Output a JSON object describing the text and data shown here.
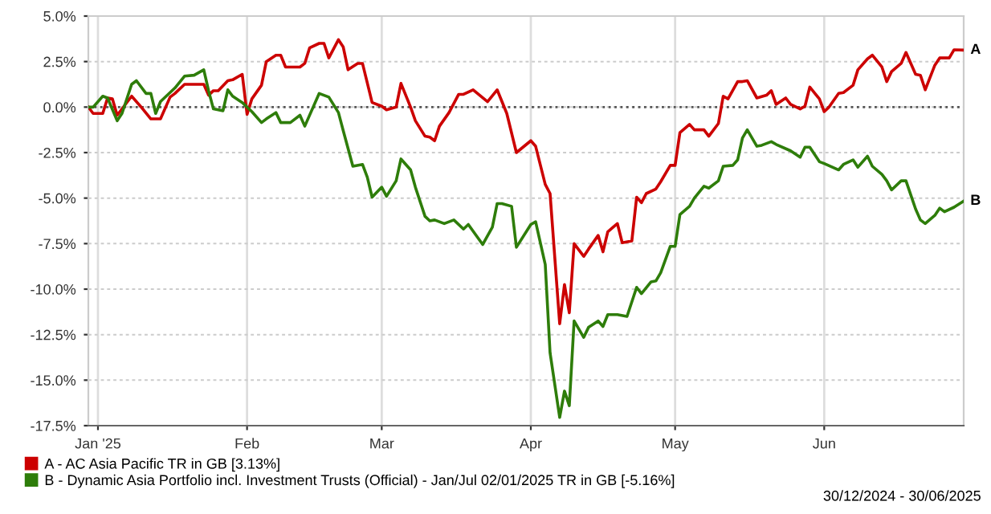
{
  "chart_data": {
    "type": "line",
    "xlim": [
      "2024-12-30",
      "2025-06-30"
    ],
    "xticks": [
      {
        "value": "2025-01-01",
        "label": "Jan '25"
      },
      {
        "value": "2025-02-01",
        "label": "Feb"
      },
      {
        "value": "2025-03-01",
        "label": "Mar"
      },
      {
        "value": "2025-04-01",
        "label": "Apr"
      },
      {
        "value": "2025-05-01",
        "label": "May"
      },
      {
        "value": "2025-06-01",
        "label": "Jun"
      }
    ],
    "ylim": [
      -17.5,
      5
    ],
    "yticks": [
      {
        "value": 5,
        "label": "5.0%"
      },
      {
        "value": 2.5,
        "label": "2.5%"
      },
      {
        "value": 0,
        "label": "0.0%"
      },
      {
        "value": -2.5,
        "label": "-2.5%"
      },
      {
        "value": -5,
        "label": "-5.0%"
      },
      {
        "value": -7.5,
        "label": "-7.5%"
      },
      {
        "value": -10,
        "label": "-10.0%"
      },
      {
        "value": -12.5,
        "label": "-12.5%"
      },
      {
        "value": -15,
        "label": "-15.0%"
      },
      {
        "value": -17.5,
        "label": "-17.5%"
      }
    ],
    "grid": true,
    "legend": "bottom",
    "ref_lines": [
      {
        "axis": "y",
        "value": 0,
        "color": "#555555",
        "line_style": "dotted"
      }
    ],
    "series": [
      {
        "name": "A - AC Asia Pacific TR in GB [3.13%]",
        "color": "#cc0000",
        "x": [
          "2024-12-30",
          "2024-12-31",
          "2025-01-02",
          "2025-01-03",
          "2025-01-04",
          "2025-01-05",
          "2025-01-08",
          "2025-01-10",
          "2025-01-12",
          "2025-01-14",
          "2025-01-16",
          "2025-01-17",
          "2025-01-19",
          "2025-01-23",
          "2025-01-24",
          "2025-01-25",
          "2025-01-26",
          "2025-01-28",
          "2025-01-29",
          "2025-01-31",
          "2025-02-01",
          "2025-02-02",
          "2025-02-04",
          "2025-02-05",
          "2025-02-07",
          "2025-02-08",
          "2025-02-09",
          "2025-02-12",
          "2025-02-13",
          "2025-02-14",
          "2025-02-16",
          "2025-02-17",
          "2025-02-18",
          "2025-02-20",
          "2025-02-21",
          "2025-02-22",
          "2025-02-24",
          "2025-02-25",
          "2025-02-27",
          "2025-03-01",
          "2025-03-02",
          "2025-03-04",
          "2025-03-05",
          "2025-03-07",
          "2025-03-08",
          "2025-03-10",
          "2025-03-11",
          "2025-03-12",
          "2025-03-13",
          "2025-03-15",
          "2025-03-17",
          "2025-03-18",
          "2025-03-20",
          "2025-03-23",
          "2025-03-25",
          "2025-03-27",
          "2025-03-29",
          "2025-04-01",
          "2025-04-02",
          "2025-04-04",
          "2025-04-05",
          "2025-04-07",
          "2025-04-08",
          "2025-04-09",
          "2025-04-10",
          "2025-04-12",
          "2025-04-13",
          "2025-04-15",
          "2025-04-16",
          "2025-04-17",
          "2025-04-19",
          "2025-04-20",
          "2025-04-22",
          "2025-04-23",
          "2025-04-24",
          "2025-04-25",
          "2025-04-27",
          "2025-04-28",
          "2025-04-30",
          "2025-05-01",
          "2025-05-02",
          "2025-05-04",
          "2025-05-05",
          "2025-05-07",
          "2025-05-08",
          "2025-05-10",
          "2025-05-11",
          "2025-05-12",
          "2025-05-14",
          "2025-05-15",
          "2025-05-16",
          "2025-05-18",
          "2025-05-20",
          "2025-05-21",
          "2025-05-22",
          "2025-05-24",
          "2025-05-25",
          "2025-05-27",
          "2025-05-28",
          "2025-05-29",
          "2025-05-31",
          "2025-06-01",
          "2025-06-02",
          "2025-06-04",
          "2025-06-05",
          "2025-06-07",
          "2025-06-08",
          "2025-06-10",
          "2025-06-11",
          "2025-06-13",
          "2025-06-14",
          "2025-06-15",
          "2025-06-17",
          "2025-06-18",
          "2025-06-20",
          "2025-06-21",
          "2025-06-22",
          "2025-06-24",
          "2025-06-25",
          "2025-06-27",
          "2025-06-28",
          "2025-06-30"
        ],
        "values": [
          0,
          -0.35,
          -0.35,
          0.5,
          0.45,
          -0.45,
          0.6,
          0,
          -0.65,
          -0.65,
          0.55,
          0.75,
          1.25,
          1.25,
          0.65,
          0.9,
          0.9,
          1.45,
          1.5,
          1.8,
          -0.4,
          0.45,
          1.2,
          2.5,
          2.85,
          2.85,
          2.2,
          2.2,
          2.4,
          3.25,
          3.5,
          3.5,
          2.7,
          3.7,
          3.3,
          2.05,
          2.4,
          2.4,
          0.25,
          0.05,
          -0.15,
          0,
          1.3,
          0,
          -0.75,
          -1.6,
          -1.65,
          -1.85,
          -1.05,
          -0.3,
          0.7,
          0.7,
          0.95,
          0.3,
          0.95,
          -0.35,
          -2.5,
          -1.85,
          -2.15,
          -4.25,
          -4.75,
          -11.9,
          -9.75,
          -11.3,
          -7.5,
          -8.2,
          -7.8,
          -7.05,
          -7.95,
          -6.85,
          -6.4,
          -7.45,
          -7.35,
          -4.95,
          -5.25,
          -4.75,
          -4.5,
          -4.1,
          -3.2,
          -3.2,
          -1.4,
          -0.95,
          -1.25,
          -1.25,
          -1.6,
          -0.9,
          0.6,
          0.45,
          1.4,
          1.4,
          1.45,
          0.5,
          0.65,
          0.9,
          0.15,
          0.5,
          0.15,
          -0.1,
          0.05,
          1.1,
          0.45,
          -0.25,
          0,
          0.75,
          0.8,
          1.2,
          2.05,
          2.65,
          2.85,
          2.2,
          1.4,
          1.95,
          2.4,
          3.0,
          1.8,
          1.75,
          0.95,
          2.3,
          2.7,
          2.7,
          3.15,
          3.13
        ]
      },
      {
        "name": "B - Dynamic Asia Portfolio incl. Investment Trusts (Official) - Jan/Jul 02/01/2025 TR in GB [-5.16%]",
        "color": "#2e7d0a",
        "x": [
          "2024-12-30",
          "2024-12-31",
          "2025-01-02",
          "2025-01-03",
          "2025-01-05",
          "2025-01-06",
          "2025-01-08",
          "2025-01-09",
          "2025-01-11",
          "2025-01-12",
          "2025-01-13",
          "2025-01-14",
          "2025-01-17",
          "2025-01-19",
          "2025-01-21",
          "2025-01-23",
          "2025-01-24",
          "2025-01-25",
          "2025-01-27",
          "2025-01-28",
          "2025-01-29",
          "2025-01-31",
          "2025-02-02",
          "2025-02-04",
          "2025-02-05",
          "2025-02-07",
          "2025-02-08",
          "2025-02-10",
          "2025-02-12",
          "2025-02-13",
          "2025-02-16",
          "2025-02-18",
          "2025-02-20",
          "2025-02-21",
          "2025-02-23",
          "2025-02-25",
          "2025-02-26",
          "2025-02-27",
          "2025-03-01",
          "2025-03-02",
          "2025-03-04",
          "2025-03-05",
          "2025-03-07",
          "2025-03-08",
          "2025-03-10",
          "2025-03-11",
          "2025-03-12",
          "2025-03-14",
          "2025-03-16",
          "2025-03-18",
          "2025-03-19",
          "2025-03-22",
          "2025-03-24",
          "2025-03-25",
          "2025-03-26",
          "2025-03-28",
          "2025-03-29",
          "2025-04-01",
          "2025-04-02",
          "2025-04-04",
          "2025-04-05",
          "2025-04-07",
          "2025-04-08",
          "2025-04-09",
          "2025-04-10",
          "2025-04-12",
          "2025-04-13",
          "2025-04-15",
          "2025-04-16",
          "2025-04-17",
          "2025-04-19",
          "2025-04-21",
          "2025-04-23",
          "2025-04-24",
          "2025-04-26",
          "2025-04-27",
          "2025-04-28",
          "2025-04-30",
          "2025-05-01",
          "2025-05-02",
          "2025-05-04",
          "2025-05-05",
          "2025-05-07",
          "2025-05-08",
          "2025-05-10",
          "2025-05-11",
          "2025-05-13",
          "2025-05-14",
          "2025-05-15",
          "2025-05-16",
          "2025-05-18",
          "2025-05-19",
          "2025-05-21",
          "2025-05-22",
          "2025-05-25",
          "2025-05-27",
          "2025-05-28",
          "2025-05-29",
          "2025-05-31",
          "2025-06-01",
          "2025-06-04",
          "2025-06-05",
          "2025-06-07",
          "2025-06-08",
          "2025-06-10",
          "2025-06-11",
          "2025-06-13",
          "2025-06-14",
          "2025-06-15",
          "2025-06-17",
          "2025-06-18",
          "2025-06-20",
          "2025-06-21",
          "2025-06-22",
          "2025-06-24",
          "2025-06-25",
          "2025-06-26",
          "2025-06-28",
          "2025-06-30"
        ],
        "values": [
          0,
          0,
          0.6,
          0.5,
          -0.75,
          -0.35,
          1.25,
          1.45,
          0.75,
          0.75,
          -0.35,
          0.3,
          1.05,
          1.7,
          1.75,
          2.05,
          0.9,
          -0.1,
          -0.2,
          0.95,
          0.6,
          0.25,
          -0.25,
          -0.85,
          -0.65,
          -0.3,
          -0.85,
          -0.85,
          -0.45,
          -1.05,
          0.75,
          0.55,
          -0.3,
          -1.3,
          -3.25,
          -3.15,
          -3.85,
          -4.95,
          -4.4,
          -4.9,
          -4.05,
          -2.85,
          -3.45,
          -4.4,
          -6.0,
          -6.25,
          -6.2,
          -6.4,
          -6.2,
          -6.7,
          -6.45,
          -7.55,
          -6.6,
          -5.3,
          -5.3,
          -5.45,
          -7.7,
          -6.45,
          -6.3,
          -8.65,
          -13.5,
          -17.05,
          -15.6,
          -16.4,
          -11.75,
          -12.65,
          -12.1,
          -11.75,
          -12.05,
          -11.4,
          -11.4,
          -11.5,
          -9.9,
          -10.25,
          -9.6,
          -9.55,
          -9.1,
          -7.65,
          -7.65,
          -5.9,
          -5.45,
          -5.0,
          -4.35,
          -4.45,
          -4.05,
          -3.25,
          -3.2,
          -2.9,
          -1.7,
          -1.25,
          -2.15,
          -2.1,
          -1.9,
          -2.05,
          -2.4,
          -2.75,
          -2.2,
          -2.2,
          -3.0,
          -3.1,
          -3.45,
          -3.15,
          -2.9,
          -3.3,
          -2.7,
          -3.25,
          -3.7,
          -4.05,
          -4.55,
          -4.05,
          -4.05,
          -5.6,
          -6.2,
          -6.4,
          -5.95,
          -5.55,
          -5.75,
          -5.5,
          -5.16
        ]
      }
    ],
    "annotations": [
      {
        "text": "A",
        "x": "2025-06-30",
        "y": 3.13
      },
      {
        "text": "B",
        "x": "2025-06-30",
        "y": -5.16
      },
      "30/12/2024 - 30/06/2025"
    ]
  }
}
